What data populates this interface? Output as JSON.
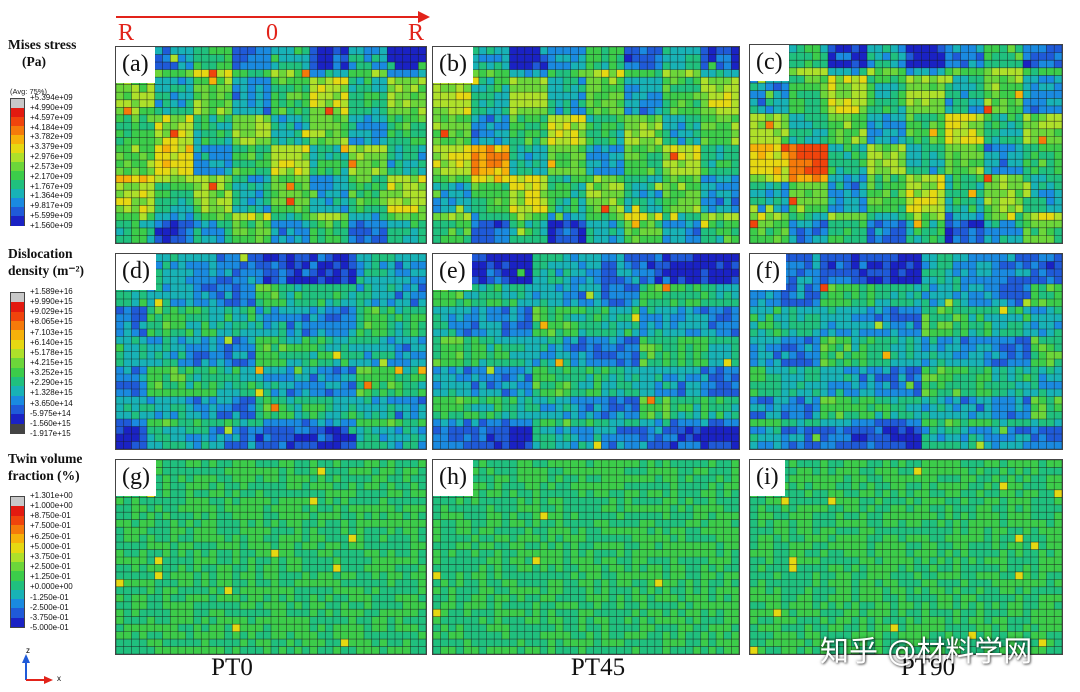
{
  "arrow": {
    "left_label": "R",
    "mid_label": "0",
    "right_label": "R",
    "color": "#e2231a"
  },
  "legends": [
    {
      "id": "mises",
      "title_lines": [
        "Mises stress",
        "(Pa)"
      ],
      "avg": "(Avg: 75%)",
      "labels": [
        "+5.394e+09",
        "+4.990e+09",
        "+4.597e+09",
        "+4.184e+09",
        "+3.782e+09",
        "+3.379e+09",
        "+2.976e+09",
        "+2.573e+09",
        "+2.170e+09",
        "+1.767e+09",
        "+1.364e+09",
        "+9.817e+09",
        "+5.599e+09",
        "+1.560e+09"
      ],
      "colors": [
        "#c8c8c8",
        "#e31a10",
        "#f0440c",
        "#f57a0a",
        "#f6b10a",
        "#e6d812",
        "#aee02a",
        "#6cd63a",
        "#3ccc4a",
        "#20c07e",
        "#18b2b6",
        "#1a8ae0",
        "#1f5ad8",
        "#1a22c4"
      ]
    },
    {
      "id": "dislocation",
      "title_lines": [
        "Dislocation",
        "density (m⁻²)"
      ],
      "avg": "",
      "labels": [
        "+1.589e+16",
        "+9.990e+15",
        "+9.029e+15",
        "+8.065e+15",
        "+7.103e+15",
        "+6.140e+15",
        "+5.178e+15",
        "+4.215e+15",
        "+3.252e+15",
        "+2.290e+15",
        "+1.328e+15",
        "+3.650e+14",
        "-5.975e+14",
        "-1.560e+15",
        "-1.917e+15"
      ],
      "colors": [
        "#c8c8c8",
        "#e31a10",
        "#f0440c",
        "#f57a0a",
        "#f6b10a",
        "#e6d812",
        "#aee02a",
        "#6cd63a",
        "#3ccc4a",
        "#20c07e",
        "#18b2b6",
        "#1a8ae0",
        "#1f5ad8",
        "#1a22c4",
        "#444444"
      ]
    },
    {
      "id": "twin",
      "title_lines": [
        "Twin volume",
        "fraction (%)"
      ],
      "avg": "",
      "labels": [
        "+1.301e+00",
        "+1.000e+00",
        "+8.750e-01",
        "+7.500e-01",
        "+6.250e-01",
        "+5.000e-01",
        "+3.750e-01",
        "+2.500e-01",
        "+1.250e-01",
        "+0.000e+00",
        "-1.250e-01",
        "-2.500e-01",
        "-3.750e-01",
        "-5.000e-01"
      ],
      "colors": [
        "#c8c8c8",
        "#e31a10",
        "#f0440c",
        "#f57a0a",
        "#f6b10a",
        "#e6d812",
        "#aee02a",
        "#6cd63a",
        "#3ccc4a",
        "#20c07e",
        "#18b2b6",
        "#1a8ae0",
        "#1f5ad8",
        "#1a22c4"
      ]
    }
  ],
  "panels": [
    {
      "label": "(a)",
      "field": "stress"
    },
    {
      "label": "(b)",
      "field": "stress"
    },
    {
      "label": "(c)",
      "field": "stress"
    },
    {
      "label": "(d)",
      "field": "dislocation"
    },
    {
      "label": "(e)",
      "field": "dislocation"
    },
    {
      "label": "(f)",
      "field": "dislocation"
    },
    {
      "label": "(g)",
      "field": "twin"
    },
    {
      "label": "(h)",
      "field": "twin"
    },
    {
      "label": "(i)",
      "field": "twin"
    }
  ],
  "columns": [
    "PT0",
    "PT45",
    "PT90"
  ],
  "axis_triad": {
    "z_label": "z",
    "x_label": "x"
  },
  "watermark": "知乎 @材料学网"
}
